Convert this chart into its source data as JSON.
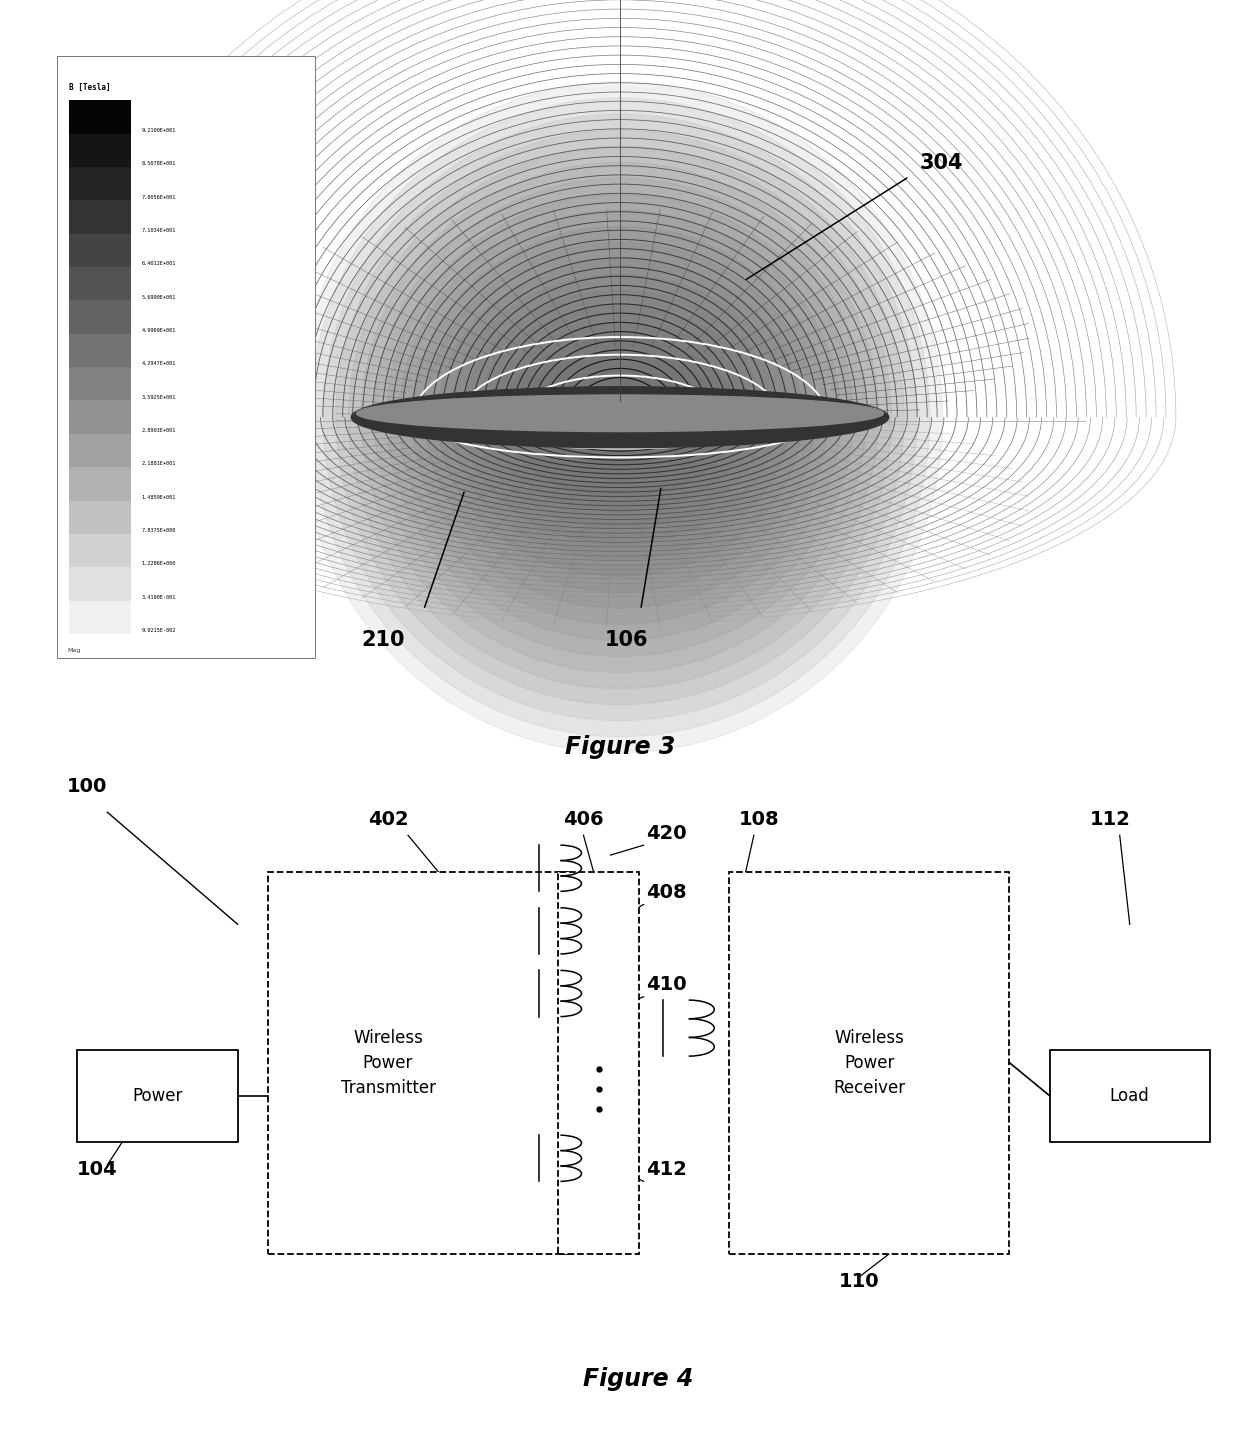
{
  "fig3_title": "Figure 3",
  "fig4_title": "Figure 4",
  "label_304": "304",
  "label_210": "210",
  "label_106": "106",
  "label_100": "100",
  "label_104": "104",
  "label_402": "402",
  "label_406": "406",
  "label_408": "408",
  "label_410": "410",
  "label_412": "412",
  "label_420": "420",
  "label_108": "108",
  "label_110": "110",
  "label_112": "112",
  "power_text": "Power",
  "wpt_text": "Wireless\nPower\nTransmitter",
  "wpr_text": "Wireless\nPower\nReceiver",
  "load_text": "Load",
  "colorbar_title": "B [Tesla]",
  "cb_values": [
    "9.2100E+001",
    "8.5078E+001",
    "7.8056E+001",
    "7.1034E+001",
    "6.4012E+001",
    "5.6990E+001",
    "4.9969E+001",
    "4.2947E+001",
    "3.5925E+001",
    "2.8903E+001",
    "2.1881E+001",
    "1.4859E+001",
    "7.8375E+000",
    "1.2286E+000",
    "3.4190E-001",
    "9.9215E-002"
  ],
  "bg_color": "#ffffff",
  "line_color": "#000000"
}
